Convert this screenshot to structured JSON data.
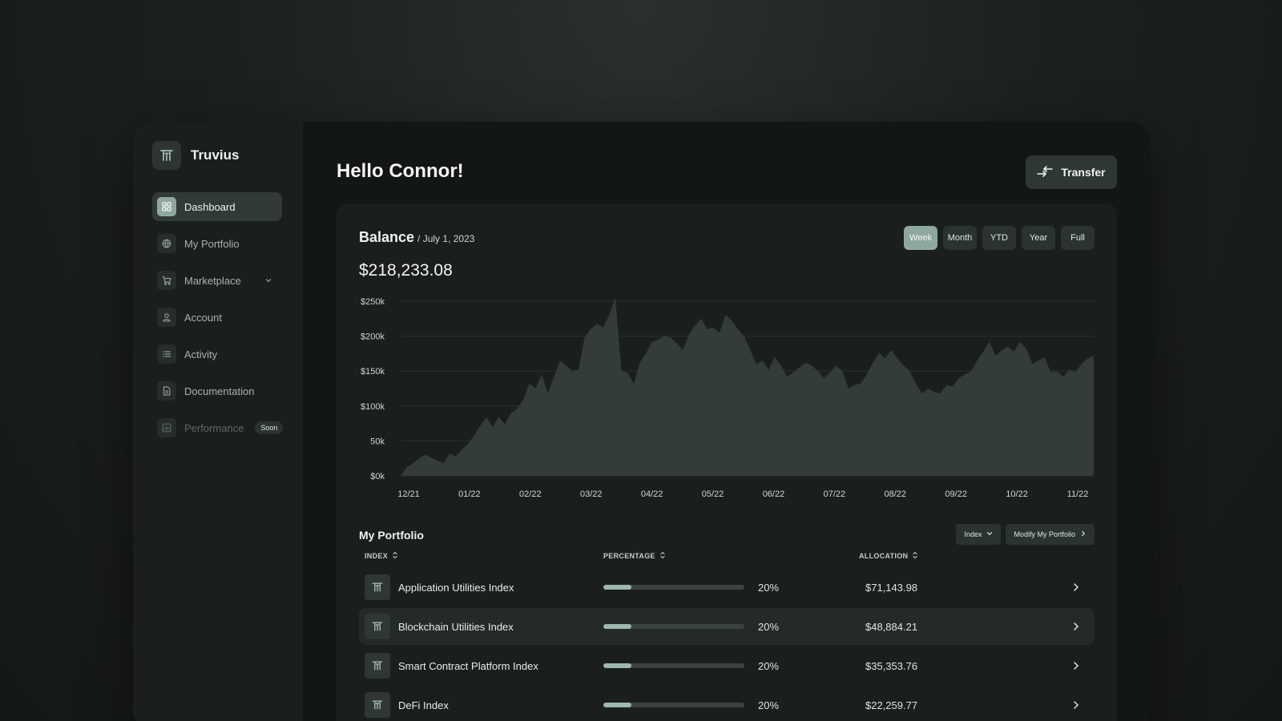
{
  "brand": {
    "name": "Truvius"
  },
  "sidebar": {
    "items": [
      {
        "label": "Dashboard",
        "icon": "grid-icon",
        "active": true
      },
      {
        "label": "My Portfolio",
        "icon": "globe-icon"
      },
      {
        "label": "Marketplace",
        "icon": "cart-icon",
        "has_chevron": true
      },
      {
        "label": "Account",
        "icon": "user-icon"
      },
      {
        "label": "Activity",
        "icon": "list-icon"
      },
      {
        "label": "Documentation",
        "icon": "document-icon"
      },
      {
        "label": "Performance",
        "icon": "chart-icon",
        "disabled": true,
        "badge": "Soon"
      }
    ]
  },
  "header": {
    "greeting": "Hello Connor!",
    "transfer_label": "Transfer"
  },
  "balance": {
    "title": "Balance",
    "date": "/ July 1, 2023",
    "value": "$218,233.08",
    "ranges": [
      "Week",
      "Month",
      "YTD",
      "Year",
      "Full"
    ],
    "active_range": "Week"
  },
  "chart_data": {
    "type": "area",
    "x_ticks": [
      "12/21",
      "01/22",
      "02/22",
      "03/22",
      "04/22",
      "05/22",
      "06/22",
      "07/22",
      "08/22",
      "09/22",
      "10/22",
      "11/22"
    ],
    "y_ticks": [
      "$0k",
      "50k",
      "$100k",
      "$150k",
      "$200k",
      "$250k"
    ],
    "ylim": [
      0,
      250
    ],
    "series": [
      {
        "values": [
          0,
          12,
          18,
          25,
          30,
          26,
          22,
          18,
          32,
          28,
          38,
          46,
          58,
          72,
          84,
          70,
          84,
          74,
          90,
          96,
          110,
          132,
          125,
          145,
          118,
          142,
          165,
          158,
          150,
          152,
          198,
          210,
          218,
          212,
          230,
          256,
          150,
          148,
          132,
          162,
          175,
          192,
          195,
          200,
          198,
          190,
          180,
          202,
          215,
          225,
          210,
          212,
          205,
          230,
          222,
          210,
          200,
          180,
          160,
          165,
          152,
          170,
          158,
          142,
          148,
          155,
          162,
          158,
          150,
          140,
          148,
          158,
          150,
          125,
          130,
          132,
          145,
          162,
          176,
          168,
          180,
          168,
          158,
          150,
          132,
          118,
          125,
          120,
          118,
          130,
          128,
          140,
          145,
          150,
          165,
          178,
          192,
          172,
          180,
          185,
          178,
          192,
          182,
          160,
          165,
          170,
          148,
          150,
          142,
          152,
          148,
          160,
          168,
          172
        ]
      }
    ]
  },
  "portfolio": {
    "title": "My Portfolio",
    "filter_label": "Index",
    "modify_label": "Modify My Portfolio",
    "columns": {
      "index": "INDEX",
      "percentage": "PERCENTAGE",
      "allocation": "ALLOCATION"
    },
    "rows": [
      {
        "name": "Application Utilities Index",
        "percent_value": 20,
        "percent": "20%",
        "allocation": "$71,143.98"
      },
      {
        "name": "Blockchain Utilities Index",
        "percent_value": 20,
        "percent": "20%",
        "allocation": "$48,884.21",
        "highlighted": true
      },
      {
        "name": "Smart Contract Platform Index",
        "percent_value": 20,
        "percent": "20%",
        "allocation": "$35,353.76"
      },
      {
        "name": "DeFi Index",
        "percent_value": 20,
        "percent": "20%",
        "allocation": "$22,259.77"
      }
    ]
  }
}
